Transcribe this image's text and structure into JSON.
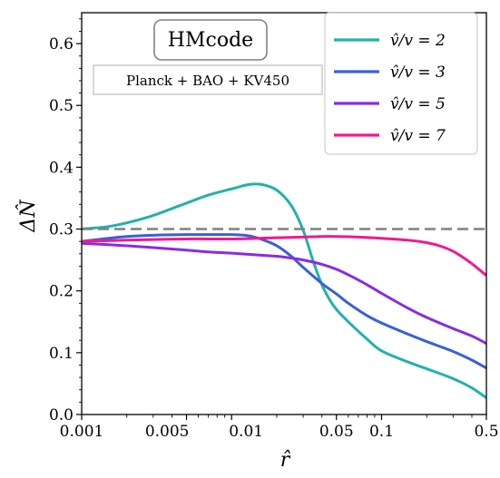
{
  "chart_data": {
    "type": "line",
    "title": "HMcode",
    "subtitle": "Planck + BAO + KV450",
    "xlabel": "r̂",
    "ylabel": "ΔN̂",
    "xscale": "log",
    "xlim": [
      0.001,
      0.5
    ],
    "ylim": [
      0.0,
      0.65
    ],
    "x_ticks": [
      0.001,
      0.005,
      0.01,
      0.05,
      0.1,
      0.5
    ],
    "x_tick_labels": [
      "0.001",
      "0.005",
      "0.01",
      "0.05",
      "0.1",
      "0.5"
    ],
    "y_ticks": [
      0.0,
      0.1,
      0.2,
      0.3,
      0.4,
      0.5,
      0.6
    ],
    "y_tick_labels": [
      "0.0",
      "0.1",
      "0.2",
      "0.3",
      "0.4",
      "0.5",
      "0.6"
    ],
    "grid": false,
    "legend_position": "top-right",
    "reference_line": {
      "y": 0.3,
      "style": "dashed",
      "color": "#808080"
    },
    "series": [
      {
        "name": "v̂/v = 2",
        "color": "#22b2a8",
        "x": [
          0.001,
          0.0015,
          0.002,
          0.003,
          0.005,
          0.007,
          0.01,
          0.013,
          0.016,
          0.02,
          0.025,
          0.03,
          0.035,
          0.04,
          0.045,
          0.05,
          0.06,
          0.08,
          0.1,
          0.15,
          0.2,
          0.3,
          0.4,
          0.5
        ],
        "y": [
          0.3,
          0.304,
          0.31,
          0.322,
          0.342,
          0.355,
          0.365,
          0.372,
          0.372,
          0.363,
          0.338,
          0.298,
          0.248,
          0.21,
          0.186,
          0.17,
          0.15,
          0.122,
          0.103,
          0.085,
          0.074,
          0.058,
          0.043,
          0.027
        ]
      },
      {
        "name": "v̂/v = 3",
        "color": "#3a5fd9",
        "x": [
          0.001,
          0.0015,
          0.002,
          0.003,
          0.005,
          0.007,
          0.01,
          0.013,
          0.016,
          0.02,
          0.025,
          0.03,
          0.04,
          0.05,
          0.06,
          0.08,
          0.1,
          0.15,
          0.2,
          0.3,
          0.4,
          0.5
        ],
        "y": [
          0.28,
          0.285,
          0.288,
          0.29,
          0.291,
          0.291,
          0.291,
          0.289,
          0.283,
          0.273,
          0.256,
          0.238,
          0.212,
          0.195,
          0.18,
          0.16,
          0.148,
          0.13,
          0.118,
          0.102,
          0.088,
          0.075
        ]
      },
      {
        "name": "v̂/v = 5",
        "color": "#8a2be2",
        "x": [
          0.001,
          0.002,
          0.003,
          0.005,
          0.007,
          0.01,
          0.015,
          0.02,
          0.025,
          0.03,
          0.04,
          0.05,
          0.06,
          0.08,
          0.1,
          0.15,
          0.2,
          0.3,
          0.4,
          0.5
        ],
        "y": [
          0.277,
          0.273,
          0.27,
          0.266,
          0.263,
          0.261,
          0.258,
          0.256,
          0.253,
          0.25,
          0.243,
          0.235,
          0.226,
          0.21,
          0.196,
          0.172,
          0.157,
          0.139,
          0.127,
          0.115
        ]
      },
      {
        "name": "v̂/v = 7",
        "color": "#f0198f",
        "x": [
          0.001,
          0.002,
          0.003,
          0.005,
          0.007,
          0.01,
          0.015,
          0.02,
          0.03,
          0.04,
          0.05,
          0.07,
          0.1,
          0.15,
          0.2,
          0.25,
          0.3,
          0.35,
          0.4,
          0.45,
          0.5
        ],
        "y": [
          0.28,
          0.282,
          0.283,
          0.284,
          0.284,
          0.284,
          0.285,
          0.286,
          0.287,
          0.288,
          0.288,
          0.287,
          0.285,
          0.282,
          0.278,
          0.272,
          0.264,
          0.254,
          0.244,
          0.234,
          0.225
        ]
      }
    ]
  }
}
